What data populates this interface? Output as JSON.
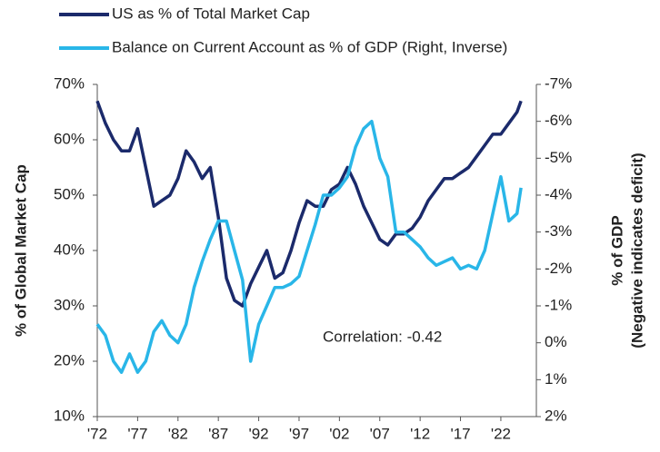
{
  "chart_data": {
    "type": "line",
    "x": [
      1972,
      1973,
      1974,
      1975,
      1976,
      1977,
      1978,
      1979,
      1980,
      1981,
      1982,
      1983,
      1984,
      1985,
      1986,
      1987,
      1988,
      1989,
      1990,
      1991,
      1992,
      1993,
      1994,
      1995,
      1996,
      1997,
      1998,
      1999,
      2000,
      2001,
      2002,
      2003,
      2004,
      2005,
      2006,
      2007,
      2008,
      2009,
      2010,
      2011,
      2012,
      2013,
      2014,
      2015,
      2016,
      2017,
      2018,
      2019,
      2020,
      2021,
      2022,
      2023,
      2024,
      2024.5
    ],
    "series": [
      {
        "name": "US as % of Total Market Cap",
        "color": "#1b2a6b",
        "values": [
          67,
          63,
          60,
          58,
          58,
          62,
          55,
          48,
          49,
          50,
          53,
          58,
          56,
          53,
          55,
          46,
          35,
          31,
          30,
          34,
          37,
          40,
          35,
          36,
          40,
          45,
          49,
          48,
          48,
          51,
          52,
          55,
          52,
          48,
          45,
          42,
          41,
          43,
          43,
          44,
          46,
          49,
          51,
          53,
          53,
          54,
          55,
          57,
          59,
          61,
          61,
          63,
          65,
          67
        ]
      },
      {
        "name": "Balance on Current Account as % of GDP (Right, Inverse)",
        "color": "#29b6e8",
        "axis": "y2",
        "values": [
          -0.5,
          -0.2,
          0.5,
          0.8,
          0.3,
          0.8,
          0.5,
          -0.3,
          -0.6,
          -0.2,
          0,
          -0.5,
          -1.5,
          -2.2,
          -2.8,
          -3.3,
          -3.3,
          -2.5,
          -1.7,
          0.5,
          -0.5,
          -1,
          -1.5,
          -1.5,
          -1.6,
          -1.8,
          -2.5,
          -3.2,
          -4,
          -4,
          -4.2,
          -4.5,
          -5.3,
          -5.8,
          -6,
          -5,
          -4.5,
          -3,
          -3,
          -2.8,
          -2.6,
          -2.3,
          -2.1,
          -2.2,
          -2.3,
          -2,
          -2.1,
          -2,
          -2.5,
          -3.5,
          -4.5,
          -3.3,
          -3.5,
          -4.2
        ]
      }
    ],
    "xlim": [
      1972,
      2026.4
    ],
    "xticks": [
      {
        "value": 1972,
        "label": "'72"
      },
      {
        "value": 1977,
        "label": "'77"
      },
      {
        "value": 1982,
        "label": "'82"
      },
      {
        "value": 1987,
        "label": "'87"
      },
      {
        "value": 1992,
        "label": "'92"
      },
      {
        "value": 1997,
        "label": "'97"
      },
      {
        "value": 2002,
        "label": "'02"
      },
      {
        "value": 2007,
        "label": "'07"
      },
      {
        "value": 2012,
        "label": "'12"
      },
      {
        "value": 2017,
        "label": "'17"
      },
      {
        "value": 2022,
        "label": "'22"
      }
    ],
    "ylim": [
      10,
      70
    ],
    "yticks": [
      {
        "value": 10,
        "label": "10%"
      },
      {
        "value": 20,
        "label": "20%"
      },
      {
        "value": 30,
        "label": "30%"
      },
      {
        "value": 40,
        "label": "40%"
      },
      {
        "value": 50,
        "label": "50%"
      },
      {
        "value": 60,
        "label": "60%"
      },
      {
        "value": 70,
        "label": "70%"
      }
    ],
    "y2lim": [
      2,
      -7
    ],
    "y2ticks": [
      {
        "value": 2,
        "label": "2%"
      },
      {
        "value": 1,
        "label": "1%"
      },
      {
        "value": 0,
        "label": "0%"
      },
      {
        "value": -1,
        "label": "-1%"
      },
      {
        "value": -2,
        "label": "-2%"
      },
      {
        "value": -3,
        "label": "-3%"
      },
      {
        "value": -4,
        "label": "-4%"
      },
      {
        "value": -5,
        "label": "-5%"
      },
      {
        "value": -6,
        "label": "-6%"
      },
      {
        "value": -7,
        "label": "-7%"
      }
    ],
    "ylabel": "% of Global Market Cap",
    "y2label": [
      "% of GDP",
      "(Negative indicates deficit)"
    ],
    "annotation": "Correlation: -0.42"
  }
}
